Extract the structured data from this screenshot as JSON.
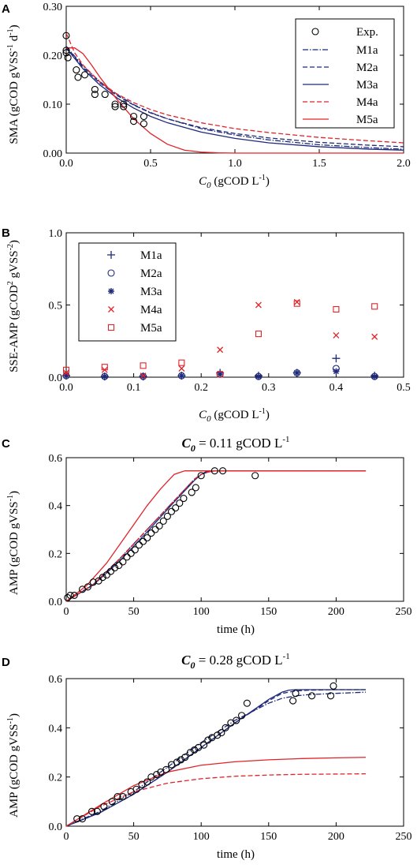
{
  "chart_data": [
    {
      "panel": "A",
      "type": "line",
      "xlabel_var": "C",
      "xlabel_sub": "0",
      "xlabel_units": " (gCOD L",
      "xlabel_sup": "-1",
      "xlabel_close": ")",
      "ylabel": "SMA (gCOD gVSS",
      "ylabel_sup1": "-1",
      "ylabel_mid": " d",
      "ylabel_sup2": "-1",
      "ylabel_close": ")",
      "xlim": [
        0,
        2.0
      ],
      "ylim": [
        0,
        0.3
      ],
      "xticks": [
        "0.0",
        "0.5",
        "1.0",
        "1.5",
        "2.0"
      ],
      "yticks": [
        "0.00",
        "0.10",
        "0.20",
        "0.30"
      ],
      "legend_position": "top-right",
      "experimental": {
        "name": "Exp.",
        "x": [
          0.0,
          0.0,
          0.0,
          0.01,
          0.06,
          0.07,
          0.11,
          0.17,
          0.17,
          0.23,
          0.29,
          0.29,
          0.34,
          0.34,
          0.4,
          0.4,
          0.46,
          0.46
        ],
        "y": [
          0.24,
          0.21,
          0.205,
          0.195,
          0.17,
          0.155,
          0.16,
          0.13,
          0.12,
          0.12,
          0.1,
          0.095,
          0.1,
          0.095,
          0.075,
          0.065,
          0.075,
          0.06
        ]
      },
      "series": [
        {
          "name": "M1a",
          "color": "#1f2a7a",
          "dash": "dashdot",
          "x": [
            0,
            0.1,
            0.2,
            0.3,
            0.4,
            0.5,
            0.6,
            0.8,
            1.0,
            1.2,
            1.5,
            1.8,
            2.0
          ],
          "y": [
            0.218,
            0.178,
            0.146,
            0.12,
            0.099,
            0.083,
            0.07,
            0.05,
            0.037,
            0.027,
            0.017,
            0.011,
            0.008
          ]
        },
        {
          "name": "M2a",
          "color": "#1f2a7a",
          "dash": "dashed",
          "x": [
            0,
            0.1,
            0.2,
            0.3,
            0.4,
            0.5,
            0.6,
            0.8,
            1.0,
            1.2,
            1.5,
            1.8,
            2.0
          ],
          "y": [
            0.218,
            0.175,
            0.143,
            0.118,
            0.098,
            0.082,
            0.07,
            0.052,
            0.04,
            0.031,
            0.022,
            0.016,
            0.013
          ]
        },
        {
          "name": "M3a",
          "color": "#1f2a7a",
          "dash": "solid",
          "x": [
            0,
            0.1,
            0.2,
            0.3,
            0.4,
            0.5,
            0.6,
            0.8,
            1.0,
            1.2,
            1.5,
            1.8,
            2.0
          ],
          "y": [
            0.215,
            0.172,
            0.139,
            0.113,
            0.092,
            0.075,
            0.062,
            0.043,
            0.03,
            0.021,
            0.013,
            0.008,
            0.006
          ]
        },
        {
          "name": "M4a",
          "color": "#e0242a",
          "dash": "dashed",
          "x": [
            0,
            0.05,
            0.1,
            0.2,
            0.3,
            0.4,
            0.5,
            0.6,
            0.8,
            1.0,
            1.2,
            1.5,
            1.8,
            2.0
          ],
          "y": [
            0.245,
            0.205,
            0.18,
            0.145,
            0.121,
            0.103,
            0.089,
            0.078,
            0.062,
            0.05,
            0.042,
            0.032,
            0.025,
            0.021
          ]
        },
        {
          "name": "M5a",
          "color": "#e0242a",
          "dash": "solid",
          "x": [
            0,
            0.05,
            0.1,
            0.15,
            0.2,
            0.3,
            0.4,
            0.5,
            0.6,
            0.7,
            0.8,
            0.9,
            1.0,
            1.5,
            2.0
          ],
          "y": [
            0.215,
            0.215,
            0.203,
            0.18,
            0.155,
            0.11,
            0.07,
            0.04,
            0.018,
            0.006,
            0.002,
            0.0005,
            0.0,
            0.0,
            0.0
          ]
        }
      ]
    },
    {
      "panel": "B",
      "type": "scatter",
      "xlabel_var": "C",
      "xlabel_sub": "0",
      "xlabel_units": " (gCOD L",
      "xlabel_sup": "-1",
      "xlabel_close": ")",
      "ylabel": "SSE-AMP (gCOD",
      "ylabel_sup1": "2",
      "ylabel_mid": " gVSS",
      "ylabel_sup2": "-2",
      "ylabel_close": ")",
      "xlim": [
        0,
        0.5
      ],
      "ylim": [
        0,
        1.0
      ],
      "xticks": [
        "0.0",
        "0.1",
        "0.2",
        "0.3",
        "0.4",
        "0.5"
      ],
      "yticks": [
        "0.0",
        "0.5",
        "1.0"
      ],
      "legend_position": "top-left",
      "x": [
        0.0,
        0.057,
        0.114,
        0.171,
        0.228,
        0.285,
        0.342,
        0.4,
        0.457
      ],
      "series": [
        {
          "name": "M1a",
          "color": "#1f2a7a",
          "marker": "plus",
          "y": [
            0.01,
            0.005,
            0.005,
            0.01,
            0.03,
            0.01,
            0.03,
            0.13,
            0.01
          ]
        },
        {
          "name": "M2a",
          "color": "#1f2a7a",
          "marker": "circle",
          "y": [
            0.01,
            0.005,
            0.005,
            0.01,
            0.02,
            0.005,
            0.03,
            0.06,
            0.005
          ]
        },
        {
          "name": "M3a",
          "color": "#1f2a7a",
          "marker": "star",
          "y": [
            0.01,
            0.005,
            0.005,
            0.01,
            0.02,
            0.005,
            0.03,
            0.04,
            0.005
          ]
        },
        {
          "name": "M4a",
          "color": "#e0242a",
          "marker": "x",
          "y": [
            0.03,
            0.05,
            0.01,
            0.06,
            0.19,
            0.5,
            0.52,
            0.29,
            0.28
          ]
        },
        {
          "name": "M5a",
          "color": "#e0242a",
          "marker": "square",
          "y": [
            0.05,
            0.07,
            0.08,
            0.1,
            0.02,
            0.3,
            0.51,
            0.47,
            0.49
          ]
        }
      ]
    },
    {
      "panel": "C",
      "type": "line",
      "title_var": "C",
      "title_sub": "0",
      "title_text": " = 0.11 gCOD L",
      "title_sup": "-1",
      "xlabel": "time (h)",
      "ylabel": "AMP (gCOD gVSS",
      "ylabel_sup1": "-1",
      "ylabel_close": ")",
      "xlim": [
        0,
        250
      ],
      "ylim": [
        0,
        0.6
      ],
      "xticks": [
        "0",
        "50",
        "100",
        "150",
        "200",
        "250"
      ],
      "yticks": [
        "0.0",
        "0.2",
        "0.4",
        "0.6"
      ],
      "experimental": {
        "x": [
          1,
          3,
          6,
          12,
          16,
          20,
          24,
          27,
          30,
          33,
          36,
          39,
          42,
          45,
          48,
          51,
          54,
          57,
          60,
          63,
          66,
          69,
          72,
          75,
          78,
          81,
          84,
          87,
          93,
          96,
          100,
          110,
          116,
          140
        ],
        "y": [
          0.015,
          0.025,
          0.025,
          0.05,
          0.06,
          0.08,
          0.085,
          0.1,
          0.11,
          0.125,
          0.14,
          0.15,
          0.165,
          0.185,
          0.2,
          0.215,
          0.235,
          0.25,
          0.265,
          0.285,
          0.3,
          0.315,
          0.335,
          0.355,
          0.375,
          0.39,
          0.41,
          0.43,
          0.455,
          0.475,
          0.525,
          0.545,
          0.545,
          0.525
        ]
      },
      "series": [
        {
          "name": "M1a",
          "color": "#1f2a7a",
          "dash": "dashdot",
          "x": [
            0,
            20,
            40,
            60,
            80,
            90,
            95,
            100,
            105,
            110,
            120,
            150,
            222
          ],
          "y": [
            0,
            0.07,
            0.18,
            0.3,
            0.42,
            0.48,
            0.51,
            0.53,
            0.54,
            0.545,
            0.545,
            0.545,
            0.545
          ]
        },
        {
          "name": "M2a",
          "color": "#1f2a7a",
          "dash": "dashed",
          "x": [
            0,
            20,
            40,
            60,
            80,
            90,
            95,
            100,
            105,
            110,
            120,
            150,
            222
          ],
          "y": [
            0,
            0.07,
            0.178,
            0.3,
            0.42,
            0.48,
            0.51,
            0.53,
            0.54,
            0.545,
            0.545,
            0.545,
            0.545
          ]
        },
        {
          "name": "M3a",
          "color": "#1f2a7a",
          "dash": "solid",
          "x": [
            0,
            20,
            40,
            60,
            80,
            90,
            95,
            100,
            104,
            110,
            120,
            150,
            222
          ],
          "y": [
            0,
            0.068,
            0.17,
            0.29,
            0.415,
            0.475,
            0.505,
            0.53,
            0.543,
            0.545,
            0.545,
            0.545,
            0.545
          ]
        },
        {
          "name": "M4a",
          "color": "#e0242a",
          "dash": "dashed",
          "x": [
            0,
            20,
            40,
            60,
            80,
            90,
            95,
            100,
            105,
            110,
            120,
            150,
            222
          ],
          "y": [
            0,
            0.07,
            0.18,
            0.3,
            0.42,
            0.48,
            0.51,
            0.53,
            0.54,
            0.545,
            0.545,
            0.545,
            0.545
          ]
        },
        {
          "name": "M5a",
          "color": "#e0242a",
          "dash": "solid",
          "x": [
            0,
            15,
            30,
            45,
            60,
            70,
            80,
            85,
            88,
            92,
            100,
            150,
            222
          ],
          "y": [
            0,
            0.065,
            0.16,
            0.28,
            0.4,
            0.47,
            0.53,
            0.54,
            0.545,
            0.545,
            0.545,
            0.545,
            0.545
          ]
        }
      ]
    },
    {
      "panel": "D",
      "type": "line",
      "title_var": "C",
      "title_sub": "0",
      "title_text": " = 0.28 gCOD L",
      "title_sup": "-1",
      "xlabel": "time (h)",
      "ylabel": "AMP (gCOD gVSS",
      "ylabel_sup1": "-1",
      "ylabel_close": ")",
      "xlim": [
        0,
        250
      ],
      "ylim": [
        0,
        0.6
      ],
      "xticks": [
        "0",
        "50",
        "100",
        "150",
        "200",
        "250"
      ],
      "yticks": [
        "0.0",
        "0.2",
        "0.4",
        "0.6"
      ],
      "experimental": {
        "x": [
          8,
          12,
          19,
          23,
          28,
          34,
          38,
          42,
          48,
          52,
          56,
          60,
          63,
          67,
          70,
          74,
          78,
          82,
          85,
          88,
          92,
          95,
          98,
          102,
          105,
          108,
          112,
          115,
          118,
          122,
          126,
          130,
          134,
          168,
          170,
          182,
          196,
          198
        ],
        "y": [
          0.03,
          0.03,
          0.06,
          0.06,
          0.08,
          0.1,
          0.12,
          0.12,
          0.14,
          0.15,
          0.17,
          0.18,
          0.2,
          0.21,
          0.22,
          0.23,
          0.25,
          0.26,
          0.27,
          0.28,
          0.3,
          0.31,
          0.32,
          0.33,
          0.35,
          0.36,
          0.37,
          0.38,
          0.4,
          0.42,
          0.43,
          0.45,
          0.5,
          0.51,
          0.54,
          0.53,
          0.53,
          0.57
        ]
      },
      "series": [
        {
          "name": "M1a",
          "color": "#1f2a7a",
          "dash": "dashdot",
          "x": [
            0,
            25,
            50,
            75,
            100,
            125,
            150,
            160,
            170,
            180,
            200,
            222
          ],
          "y": [
            0,
            0.06,
            0.14,
            0.24,
            0.34,
            0.43,
            0.5,
            0.52,
            0.53,
            0.535,
            0.54,
            0.545
          ]
        },
        {
          "name": "M2a",
          "color": "#1f2a7a",
          "dash": "dashed",
          "x": [
            0,
            25,
            50,
            75,
            100,
            125,
            150,
            160,
            170,
            180,
            200,
            222
          ],
          "y": [
            0,
            0.055,
            0.13,
            0.22,
            0.32,
            0.42,
            0.51,
            0.54,
            0.55,
            0.553,
            0.555,
            0.555
          ]
        },
        {
          "name": "M3a",
          "color": "#1f2a7a",
          "dash": "solid",
          "x": [
            0,
            25,
            50,
            75,
            100,
            125,
            150,
            160,
            165,
            170,
            200,
            222
          ],
          "y": [
            0,
            0.055,
            0.13,
            0.22,
            0.32,
            0.42,
            0.515,
            0.545,
            0.553,
            0.555,
            0.555,
            0.555
          ]
        },
        {
          "name": "M4a",
          "color": "#e0242a",
          "dash": "dashed",
          "x": [
            0,
            25,
            50,
            75,
            100,
            125,
            150,
            175,
            200,
            222
          ],
          "y": [
            0,
            0.08,
            0.14,
            0.175,
            0.193,
            0.203,
            0.208,
            0.211,
            0.212,
            0.213
          ]
        },
        {
          "name": "M5a",
          "color": "#e0242a",
          "dash": "solid",
          "x": [
            0,
            25,
            50,
            75,
            100,
            125,
            150,
            175,
            200,
            222
          ],
          "y": [
            0,
            0.085,
            0.165,
            0.22,
            0.248,
            0.262,
            0.27,
            0.275,
            0.278,
            0.28
          ]
        }
      ]
    }
  ]
}
